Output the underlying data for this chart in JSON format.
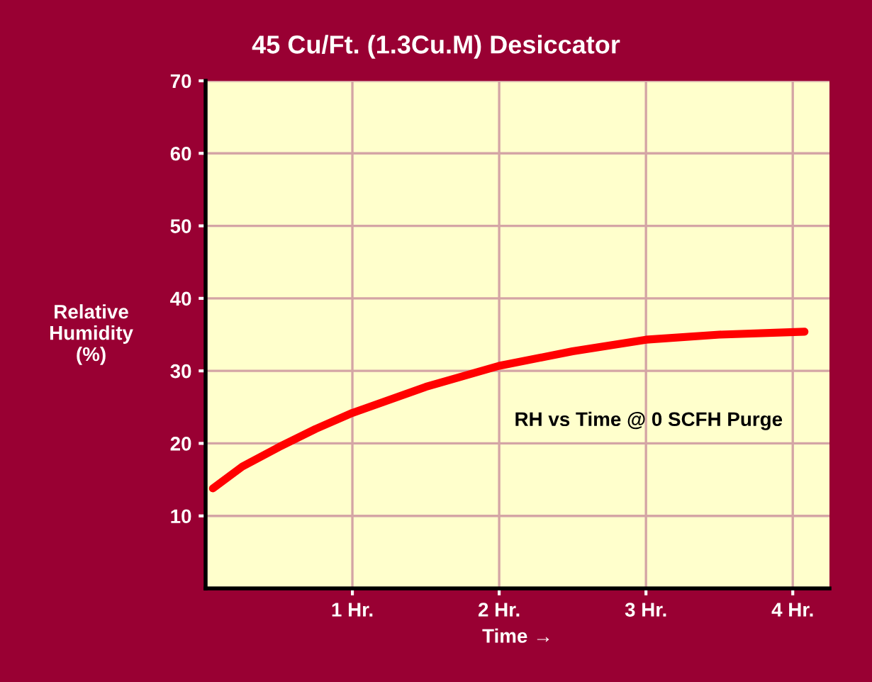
{
  "chart_data": {
    "type": "line",
    "title": "45 Cu/Ft. (1.3Cu.M) Desiccator",
    "xlabel": "Time →",
    "ylabel": "Relative\nHumidity\n(%)",
    "x": [
      0.05,
      0.25,
      0.5,
      0.75,
      1,
      1.5,
      2,
      2.5,
      3,
      3.5,
      4.08
    ],
    "series": [
      {
        "color": "#ff0000",
        "values": [
          13.8,
          16.8,
          19.5,
          22.0,
          24.2,
          27.8,
          30.7,
          32.7,
          34.3,
          35.0,
          35.4
        ]
      }
    ],
    "xlim": [
      0,
      4.25
    ],
    "xticks": [
      {
        "value": 1,
        "label": "1 Hr."
      },
      {
        "value": 2,
        "label": "2 Hr."
      },
      {
        "value": 3,
        "label": "3 Hr."
      },
      {
        "value": 4,
        "label": "4 Hr."
      }
    ],
    "ylim": [
      0,
      70
    ],
    "yticks": [
      10,
      20,
      30,
      40,
      50,
      60,
      70
    ],
    "grid": true,
    "line_style": "solid",
    "marker": "none",
    "annotations": [
      "RH vs Time @ 0 SCFH Purge"
    ]
  }
}
